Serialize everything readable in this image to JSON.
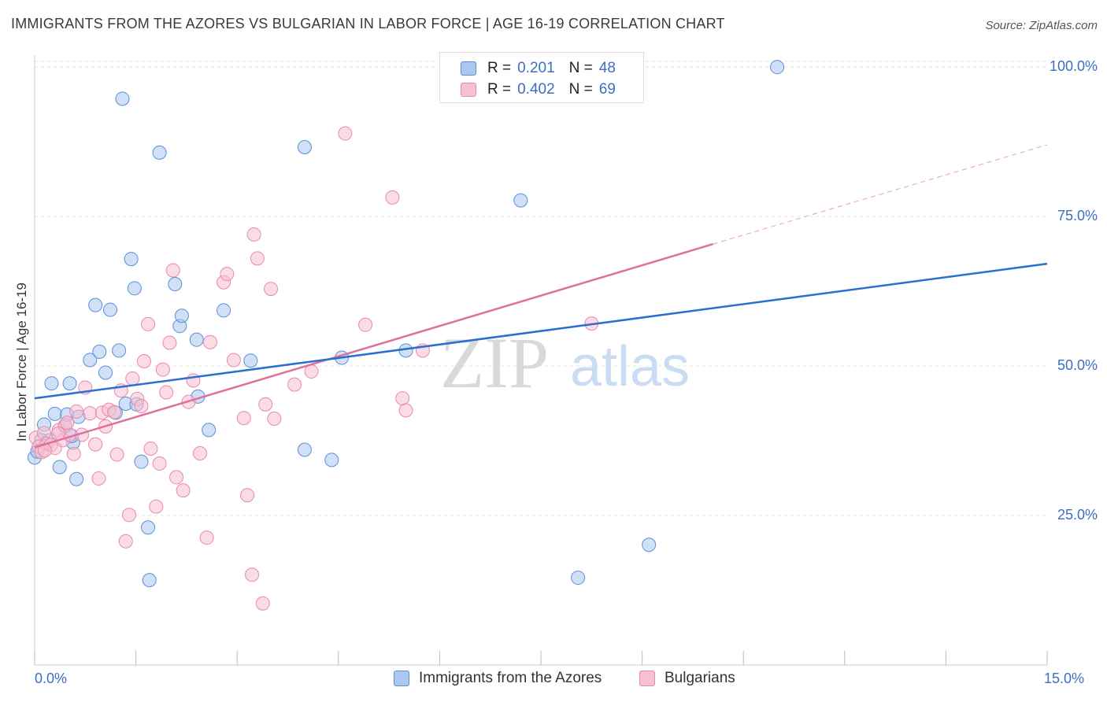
{
  "title": "IMMIGRANTS FROM THE AZORES VS BULGARIAN IN LABOR FORCE | AGE 16-19 CORRELATION CHART",
  "source": "Source: ZipAtlas.com",
  "watermark": {
    "zip": "ZIP",
    "atlas": "atlas"
  },
  "legend": {
    "r_label": "R =",
    "n_label": "N =",
    "rows": [
      {
        "r": "0.201",
        "n": "48"
      },
      {
        "r": "0.402",
        "n": "69"
      }
    ]
  },
  "bottom_legend": [
    "Immigrants from the Azores",
    "Bulgarians"
  ],
  "colors": {
    "azores_fill": "#aac8f0",
    "azores_stroke": "#5b8fd6",
    "azores_line": "#2a6fce",
    "bulg_fill": "#f7bfd2",
    "bulg_stroke": "#e889a8",
    "bulg_line": "#e0709a",
    "tick_text": "#3a6fc4",
    "grid": "#e6e6e6"
  },
  "chart_data": {
    "type": "scatter",
    "title": "IMMIGRANTS FROM THE AZORES VS BULGARIAN IN LABOR FORCE | AGE 16-19 CORRELATION CHART",
    "xlabel": "",
    "ylabel": "In Labor Force | Age 16-19",
    "xlim": [
      0,
      15
    ],
    "ylim": [
      0,
      102
    ],
    "x_tick_labels": [
      "0.0%",
      "15.0%"
    ],
    "y_ticks": [
      25,
      50,
      75,
      100
    ],
    "y_tick_labels": [
      "25.0%",
      "50.0%",
      "75.0%",
      "100.0%"
    ],
    "grid": true,
    "legend_position": "top-center",
    "series": [
      {
        "name": "Immigrants from the Azores",
        "r": 0.201,
        "n": 48,
        "trend": {
          "x": [
            0,
            15
          ],
          "y": [
            44.6,
            67.1
          ]
        },
        "points": [
          [
            0.0,
            34.7
          ],
          [
            0.04,
            35.7
          ],
          [
            0.1,
            37.6
          ],
          [
            0.14,
            40.2
          ],
          [
            0.22,
            37.6
          ],
          [
            0.25,
            47.1
          ],
          [
            0.3,
            42.0
          ],
          [
            0.37,
            33.1
          ],
          [
            0.45,
            39.9
          ],
          [
            0.48,
            41.9
          ],
          [
            0.52,
            47.1
          ],
          [
            0.57,
            37.2
          ],
          [
            0.62,
            31.1
          ],
          [
            0.65,
            41.5
          ],
          [
            0.82,
            51.0
          ],
          [
            0.9,
            60.2
          ],
          [
            0.96,
            52.4
          ],
          [
            1.05,
            48.9
          ],
          [
            1.12,
            59.4
          ],
          [
            1.25,
            52.6
          ],
          [
            1.35,
            43.7
          ],
          [
            1.43,
            67.9
          ],
          [
            1.48,
            63.0
          ],
          [
            1.51,
            43.6
          ],
          [
            1.58,
            34.0
          ],
          [
            1.68,
            23.0
          ],
          [
            1.7,
            14.2
          ],
          [
            1.85,
            85.7
          ],
          [
            2.08,
            63.7
          ],
          [
            2.15,
            56.7
          ],
          [
            2.18,
            58.4
          ],
          [
            2.4,
            54.4
          ],
          [
            2.42,
            44.9
          ],
          [
            2.58,
            39.3
          ],
          [
            2.8,
            59.3
          ],
          [
            3.2,
            50.9
          ],
          [
            1.3,
            94.7
          ],
          [
            4.0,
            86.6
          ],
          [
            4.0,
            36.0
          ],
          [
            4.4,
            34.3
          ],
          [
            4.55,
            51.4
          ],
          [
            5.5,
            52.6
          ],
          [
            7.2,
            77.7
          ],
          [
            8.05,
            14.6
          ],
          [
            9.1,
            20.1
          ],
          [
            11.0,
            100.0
          ],
          [
            0.55,
            38.3
          ],
          [
            1.2,
            42.2
          ]
        ]
      },
      {
        "name": "Bulgarians",
        "r": 0.402,
        "n": 69,
        "trend": {
          "x": [
            0,
            10.05
          ],
          "y": [
            36.4,
            70.4
          ],
          "dashed_to": {
            "x": 15,
            "y": 87.0
          }
        },
        "points": [
          [
            0.02,
            38.0
          ],
          [
            0.06,
            36.5
          ],
          [
            0.1,
            35.6
          ],
          [
            0.14,
            38.8
          ],
          [
            0.18,
            37.0
          ],
          [
            0.24,
            36.8
          ],
          [
            0.3,
            36.3
          ],
          [
            0.36,
            39.3
          ],
          [
            0.42,
            37.6
          ],
          [
            0.45,
            40.1
          ],
          [
            0.52,
            38.5
          ],
          [
            0.58,
            35.3
          ],
          [
            0.62,
            42.4
          ],
          [
            0.7,
            38.5
          ],
          [
            0.75,
            46.4
          ],
          [
            0.82,
            42.1
          ],
          [
            0.9,
            36.9
          ],
          [
            0.95,
            31.2
          ],
          [
            1.0,
            42.2
          ],
          [
            1.05,
            39.9
          ],
          [
            1.1,
            42.7
          ],
          [
            1.18,
            42.3
          ],
          [
            1.22,
            35.2
          ],
          [
            1.28,
            45.9
          ],
          [
            1.35,
            20.7
          ],
          [
            1.4,
            25.1
          ],
          [
            1.45,
            47.9
          ],
          [
            1.52,
            44.5
          ],
          [
            1.58,
            43.3
          ],
          [
            1.62,
            50.8
          ],
          [
            1.68,
            57.0
          ],
          [
            1.72,
            36.2
          ],
          [
            1.8,
            26.5
          ],
          [
            1.85,
            33.7
          ],
          [
            1.9,
            49.4
          ],
          [
            1.95,
            45.6
          ],
          [
            2.0,
            53.9
          ],
          [
            2.05,
            66.0
          ],
          [
            2.1,
            31.4
          ],
          [
            2.2,
            29.2
          ],
          [
            2.28,
            44.0
          ],
          [
            2.35,
            47.6
          ],
          [
            2.45,
            35.4
          ],
          [
            2.55,
            21.3
          ],
          [
            2.6,
            54.0
          ],
          [
            2.8,
            64.0
          ],
          [
            2.85,
            65.4
          ],
          [
            2.95,
            51.0
          ],
          [
            3.1,
            41.3
          ],
          [
            3.15,
            28.4
          ],
          [
            3.22,
            15.1
          ],
          [
            3.25,
            72.0
          ],
          [
            3.3,
            68.0
          ],
          [
            3.38,
            10.3
          ],
          [
            3.42,
            43.6
          ],
          [
            3.5,
            62.9
          ],
          [
            3.55,
            41.2
          ],
          [
            3.85,
            46.9
          ],
          [
            4.1,
            49.1
          ],
          [
            4.6,
            88.9
          ],
          [
            4.9,
            56.9
          ],
          [
            5.3,
            78.2
          ],
          [
            5.45,
            44.6
          ],
          [
            5.5,
            42.6
          ],
          [
            5.75,
            52.6
          ],
          [
            8.25,
            57.1
          ],
          [
            0.35,
            38.7
          ],
          [
            0.15,
            35.9
          ],
          [
            0.48,
            40.5
          ]
        ]
      }
    ]
  }
}
